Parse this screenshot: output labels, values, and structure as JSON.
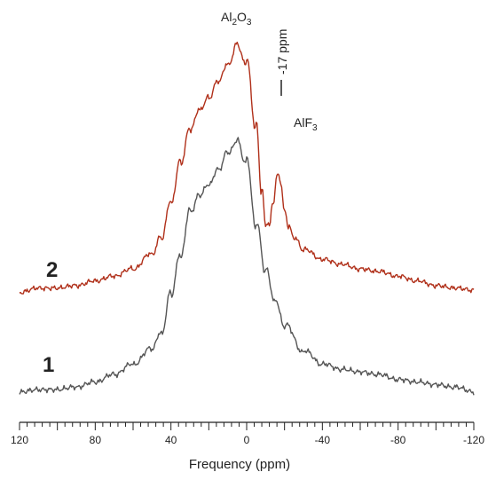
{
  "chart_data": {
    "type": "line",
    "title": "",
    "xlabel": "Frequency (ppm)",
    "ylabel": "",
    "xlim": [
      120,
      -120
    ],
    "x_reversed": true,
    "xticks": [
      120,
      80,
      40,
      0,
      -40,
      -80,
      -120
    ],
    "tick_labels": [
      "120",
      "80",
      "40",
      "0",
      "-40",
      "-80",
      "-120"
    ],
    "minor_tick_step": 4,
    "grid": false,
    "legend": "none",
    "y_units": "relative intensity (0 = baseline, 1 = trace 1 maximum)",
    "series": [
      {
        "name": "1",
        "color": "#555555",
        "label_color": "#111111",
        "x": [
          120,
          110,
          100,
          90,
          80,
          70,
          60,
          50,
          45,
          40,
          35,
          30,
          25,
          20,
          15,
          10,
          5,
          0,
          -5,
          -10,
          -15,
          -20,
          -30,
          -40,
          -50,
          -60,
          -70,
          -80,
          -90,
          -100,
          -110,
          -120
        ],
        "y": [
          0.0,
          0.01,
          0.01,
          0.02,
          0.04,
          0.07,
          0.11,
          0.17,
          0.23,
          0.39,
          0.54,
          0.72,
          0.78,
          0.82,
          0.88,
          0.95,
          1.0,
          0.92,
          0.66,
          0.48,
          0.36,
          0.26,
          0.16,
          0.11,
          0.09,
          0.08,
          0.07,
          0.05,
          0.04,
          0.03,
          0.02,
          0.0
        ]
      },
      {
        "name": "2",
        "color": "#b0301a",
        "label_color": "#b0301a",
        "x": [
          120,
          110,
          100,
          90,
          80,
          70,
          60,
          50,
          45,
          40,
          35,
          30,
          25,
          20,
          15,
          10,
          5,
          0,
          -5,
          -8,
          -10,
          -12,
          -14,
          -16,
          -17,
          -18,
          -20,
          -22,
          -25,
          -30,
          -40,
          -50,
          -60,
          -70,
          -80,
          -90,
          -100,
          -110,
          -120
        ],
        "y": [
          0.0,
          0.02,
          0.02,
          0.03,
          0.05,
          0.07,
          0.1,
          0.16,
          0.23,
          0.38,
          0.55,
          0.69,
          0.77,
          0.82,
          0.89,
          0.96,
          1.05,
          0.98,
          0.71,
          0.43,
          0.28,
          0.28,
          0.38,
          0.49,
          0.5,
          0.46,
          0.34,
          0.28,
          0.23,
          0.18,
          0.14,
          0.12,
          0.1,
          0.09,
          0.07,
          0.05,
          0.03,
          0.02,
          0.01
        ]
      }
    ],
    "annotations": [
      {
        "id": "al2o3",
        "base": "Al",
        "sub1": "2",
        "mid": "O",
        "sub2": "3",
        "x": 0
      },
      {
        "id": "alf3",
        "base": "AlF",
        "sub1": "3",
        "x": -17
      },
      {
        "id": "ppm",
        "text": "-17 ppm",
        "x": -17
      }
    ]
  }
}
